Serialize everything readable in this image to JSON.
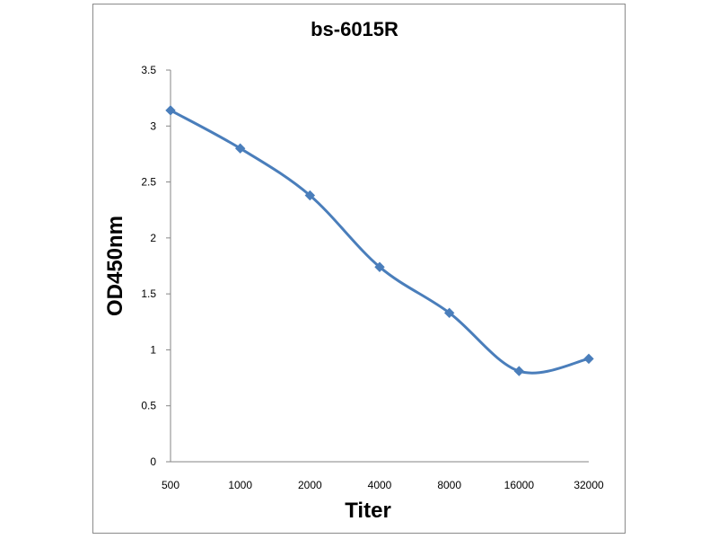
{
  "chart_data": {
    "type": "line",
    "title": "bs-6015R",
    "xlabel": "Titer",
    "ylabel": "OD450nm",
    "categories": [
      "500",
      "1000",
      "2000",
      "4000",
      "8000",
      "16000",
      "32000"
    ],
    "series": [
      {
        "values": [
          3.14,
          2.8,
          2.38,
          1.74,
          1.33,
          0.81,
          0.92
        ]
      }
    ],
    "ylim": [
      0,
      3.5
    ],
    "yticks": [
      "0",
      "0.5",
      "1",
      "1.5",
      "2",
      "2.5",
      "3",
      "3.5"
    ],
    "grid": false,
    "legend": "none",
    "colors": {
      "series": "#4a7ebb",
      "axis": "#868686"
    }
  }
}
